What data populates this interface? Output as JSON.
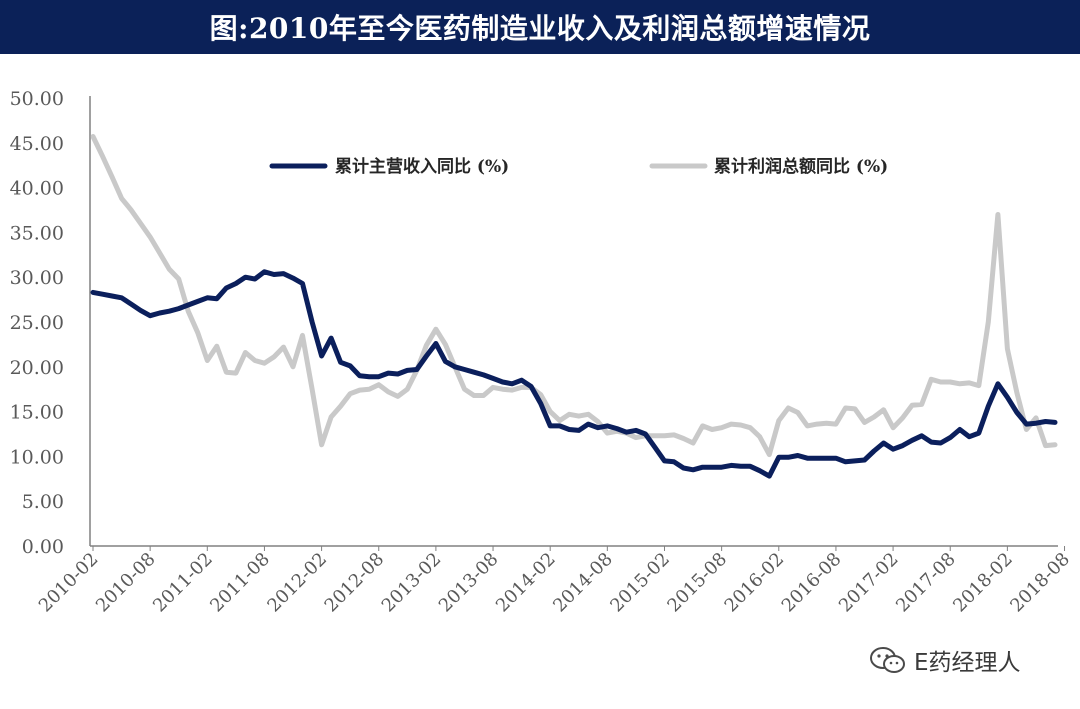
{
  "header": {
    "title": "图:2010年至今医药制造业收入及利润总额增速情况"
  },
  "watermark": {
    "text": "E药经理人"
  },
  "colors": {
    "revenue": "#0b1f5c",
    "profit": "#c9c9c9",
    "axis": "#808080",
    "title_bg": "#0b2158"
  },
  "chart_data": {
    "type": "line",
    "title": "图:2010年至今医药制造业收入及利润总额增速情况",
    "xlabel": "",
    "ylabel": "",
    "ylim": [
      0,
      50
    ],
    "yticks": [
      "0.00",
      "5.00",
      "10.00",
      "15.00",
      "20.00",
      "25.00",
      "30.00",
      "35.00",
      "40.00",
      "45.00",
      "50.00"
    ],
    "xticks": [
      "2010-02",
      "2010-08",
      "2011-02",
      "2011-08",
      "2012-02",
      "2012-08",
      "2013-02",
      "2013-08",
      "2014-02",
      "2014-08",
      "2015-02",
      "2015-08",
      "2016-02",
      "2016-08",
      "2017-02",
      "2017-08",
      "2018-02",
      "2018-08"
    ],
    "legend_position": "top",
    "series": [
      {
        "name": "累计主营收入同比 (%)",
        "values": [
          28.3,
          28.1,
          27.9,
          27.7,
          27.0,
          26.3,
          25.7,
          26.0,
          26.2,
          26.5,
          26.9,
          27.3,
          27.7,
          27.6,
          28.8,
          29.3,
          30.0,
          29.8,
          30.6,
          30.3,
          30.4,
          29.9,
          29.3,
          25.0,
          21.2,
          23.2,
          20.5,
          20.1,
          19.0,
          18.9,
          18.9,
          19.3,
          19.2,
          19.6,
          19.7,
          21.2,
          22.6,
          20.6,
          20.0,
          19.7,
          19.4,
          19.1,
          18.7,
          18.3,
          18.1,
          18.5,
          17.8,
          15.9,
          13.4,
          13.4,
          13.0,
          12.9,
          13.6,
          13.2,
          13.4,
          13.1,
          12.7,
          12.9,
          12.5,
          11.0,
          9.5,
          9.4,
          8.7,
          8.5,
          8.8,
          8.8,
          8.8,
          9.0,
          8.9,
          8.9,
          8.4,
          7.8,
          9.9,
          9.9,
          10.1,
          9.8,
          9.8,
          9.8,
          9.8,
          9.4,
          9.5,
          9.6,
          10.6,
          11.5,
          10.8,
          11.2,
          11.8,
          12.3,
          11.6,
          11.5,
          12.1,
          13.0,
          12.2,
          12.6,
          15.6,
          18.1,
          16.6,
          14.9,
          13.6,
          13.7,
          13.9,
          13.8
        ]
      },
      {
        "name": "累计利润总额同比 (%)",
        "values": [
          45.7,
          43.5,
          41.2,
          38.8,
          37.5,
          36.0,
          34.5,
          32.7,
          30.9,
          29.8,
          26.2,
          23.8,
          20.7,
          22.3,
          19.4,
          19.3,
          21.6,
          20.7,
          20.4,
          21.1,
          22.2,
          20.0,
          23.5,
          17.5,
          11.3,
          14.4,
          15.6,
          17.0,
          17.4,
          17.5,
          18.0,
          17.2,
          16.7,
          17.5,
          19.6,
          22.4,
          24.2,
          22.5,
          20.0,
          17.5,
          16.8,
          16.8,
          17.7,
          17.5,
          17.4,
          17.7,
          17.7,
          16.9,
          15.0,
          14.0,
          14.7,
          14.5,
          14.7,
          13.9,
          12.6,
          12.8,
          12.6,
          12.1,
          12.3,
          12.3,
          12.3,
          12.4,
          12.0,
          11.5,
          13.4,
          13.0,
          13.2,
          13.6,
          13.5,
          13.2,
          12.2,
          10.2,
          14.0,
          15.4,
          14.9,
          13.4,
          13.6,
          13.7,
          13.6,
          15.4,
          15.3,
          13.8,
          14.4,
          15.2,
          13.2,
          14.3,
          15.7,
          15.8,
          18.6,
          18.3,
          18.3,
          18.1,
          18.2,
          17.9,
          25.0,
          37.0,
          22.0,
          17.1,
          13.0,
          14.3,
          11.2,
          11.3
        ]
      }
    ]
  }
}
